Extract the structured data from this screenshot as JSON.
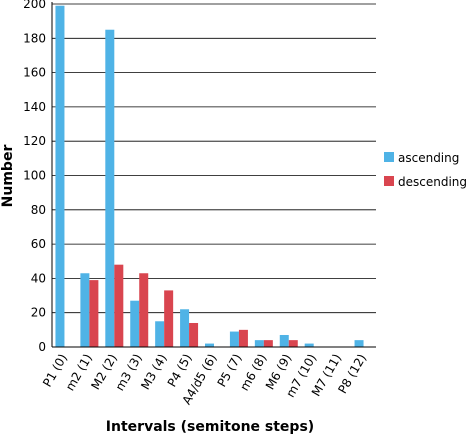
{
  "chart_data": {
    "type": "bar",
    "categories": [
      "P1 (0)",
      "m2 (1)",
      "M2 (2)",
      "m3 (3)",
      "M3 (4)",
      "P4 (5)",
      "A4/d5 (6)",
      "P5 (7)",
      "m6 (8)",
      "M6 (9)",
      "m7 (10)",
      "M7 (11)",
      "P8 (12)"
    ],
    "series": [
      {
        "name": "ascending",
        "color": "#4fb3e6",
        "values": [
          199,
          43,
          185,
          27,
          15,
          22,
          2,
          9,
          4,
          7,
          2,
          0,
          4
        ]
      },
      {
        "name": "descending",
        "color": "#d9454f",
        "values": [
          0,
          39,
          48,
          43,
          33,
          14,
          0,
          10,
          4,
          4,
          0,
          0,
          0
        ]
      }
    ],
    "title": "",
    "xlabel": "Intervals (semitone steps)",
    "ylabel": "Number",
    "ylim": [
      0,
      200
    ],
    "yticks": [
      "0",
      "20",
      "40",
      "60",
      "80",
      "100",
      "120",
      "140",
      "160",
      "180",
      "200"
    ],
    "grid": true,
    "legend_position": "right"
  }
}
